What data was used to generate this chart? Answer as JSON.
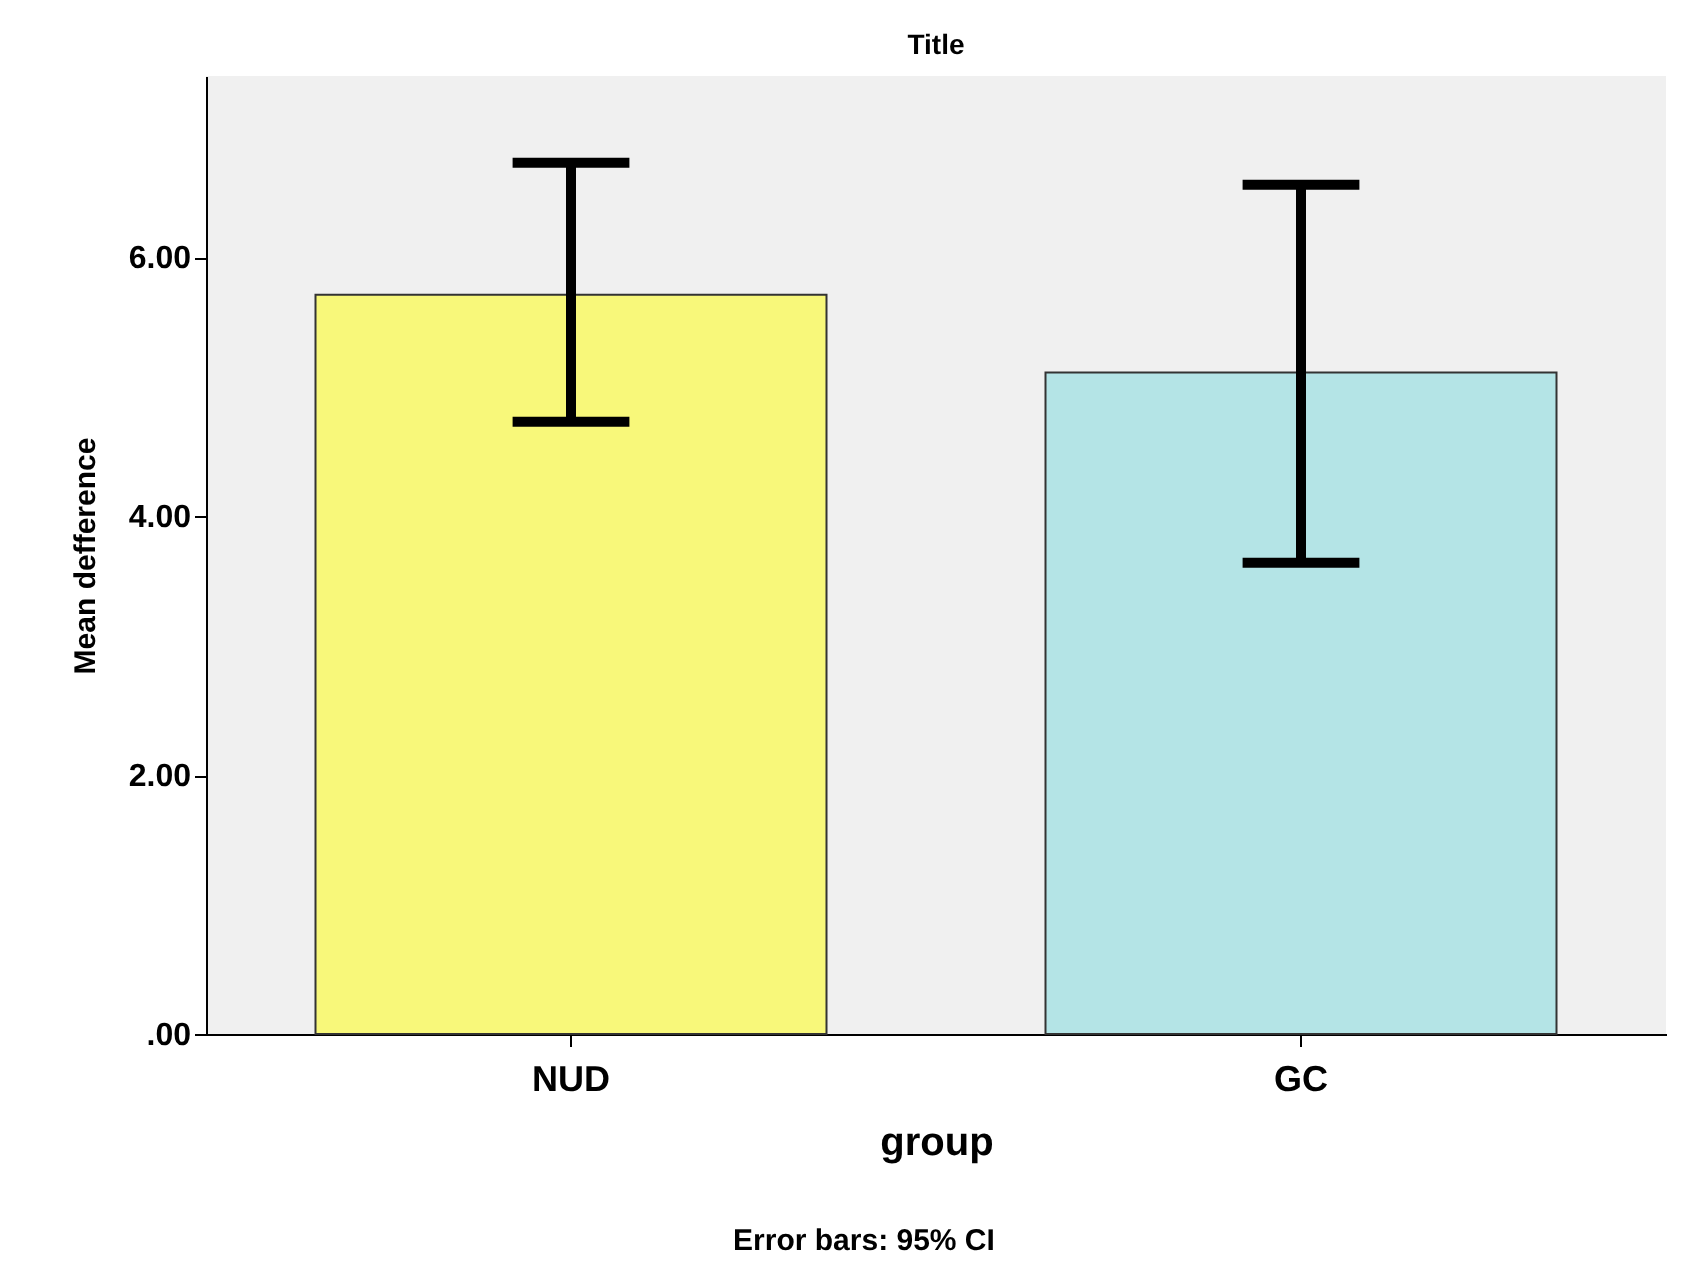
{
  "chart_data": {
    "type": "bar",
    "title": "Title",
    "xlabel": "group",
    "ylabel": "Mean defference",
    "categories": [
      "NUD",
      "GC"
    ],
    "values": [
      5.71,
      5.11
    ],
    "colors": [
      "#f8f87a",
      "#b4e4e6"
    ],
    "errors": [
      [
        4.73,
        6.73
      ],
      [
        3.64,
        6.56
      ]
    ],
    "ylim": [
      0,
      7.4
    ],
    "yticks": [
      {
        "value": 0,
        "label": ".00"
      },
      {
        "value": 2,
        "label": "2.00"
      },
      {
        "value": 4,
        "label": "4.00"
      },
      {
        "value": 6,
        "label": "6.00"
      }
    ],
    "grid": false,
    "legend": false,
    "annotations": [
      "Error bars: 95% CI"
    ]
  }
}
